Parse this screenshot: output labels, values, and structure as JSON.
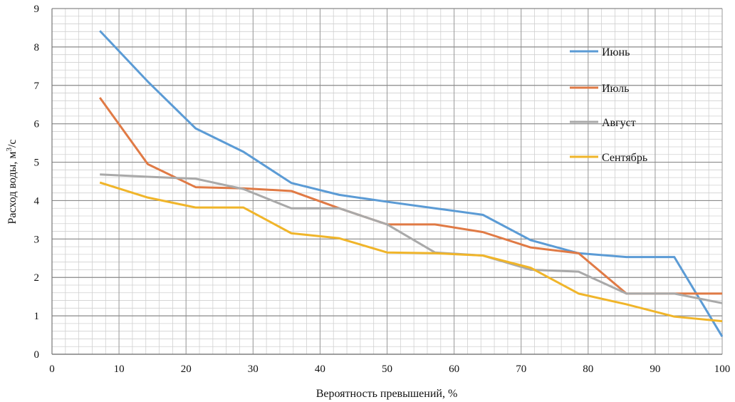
{
  "chart_data": {
    "type": "line",
    "title": "",
    "xlabel": "Вероятность превышений, %",
    "ylabel": "Расход воды, м",
    "ylabel_sup": "3",
    "ylabel_suffix": "/с",
    "xlim": [
      0,
      100
    ],
    "ylim": [
      0,
      9
    ],
    "xticks": [
      0,
      10,
      20,
      30,
      40,
      50,
      60,
      70,
      80,
      90,
      100
    ],
    "yticks": [
      0,
      1,
      2,
      3,
      4,
      5,
      6,
      7,
      8,
      9
    ],
    "grid": true,
    "legend_position": "top-right",
    "x": [
      7.14,
      14.29,
      21.43,
      28.57,
      35.71,
      42.86,
      50,
      57.14,
      64.29,
      71.43,
      78.57,
      85.71,
      92.86,
      100
    ],
    "series": [
      {
        "name": "Июнь",
        "color": "#5b9bd5",
        "values": [
          8.42,
          7.1,
          5.88,
          5.27,
          4.46,
          4.15,
          3.97,
          3.8,
          3.63,
          2.97,
          2.63,
          2.53,
          2.53,
          0.46
        ]
      },
      {
        "name": "Июль",
        "color": "#e07a45",
        "values": [
          6.68,
          4.95,
          4.35,
          4.32,
          4.25,
          3.8,
          3.38,
          3.38,
          3.18,
          2.78,
          2.63,
          1.58,
          1.58,
          1.58
        ]
      },
      {
        "name": "Август",
        "color": "#a9a9a9",
        "values": [
          4.68,
          4.62,
          4.57,
          4.3,
          3.8,
          3.8,
          3.38,
          2.65,
          2.57,
          2.2,
          2.15,
          1.58,
          1.58,
          1.33
        ]
      },
      {
        "name": "Сентябрь",
        "color": "#f0b52a",
        "values": [
          4.47,
          4.08,
          3.82,
          3.82,
          3.15,
          3.02,
          2.65,
          2.63,
          2.57,
          2.25,
          1.58,
          1.3,
          0.98,
          0.86
        ]
      }
    ]
  }
}
